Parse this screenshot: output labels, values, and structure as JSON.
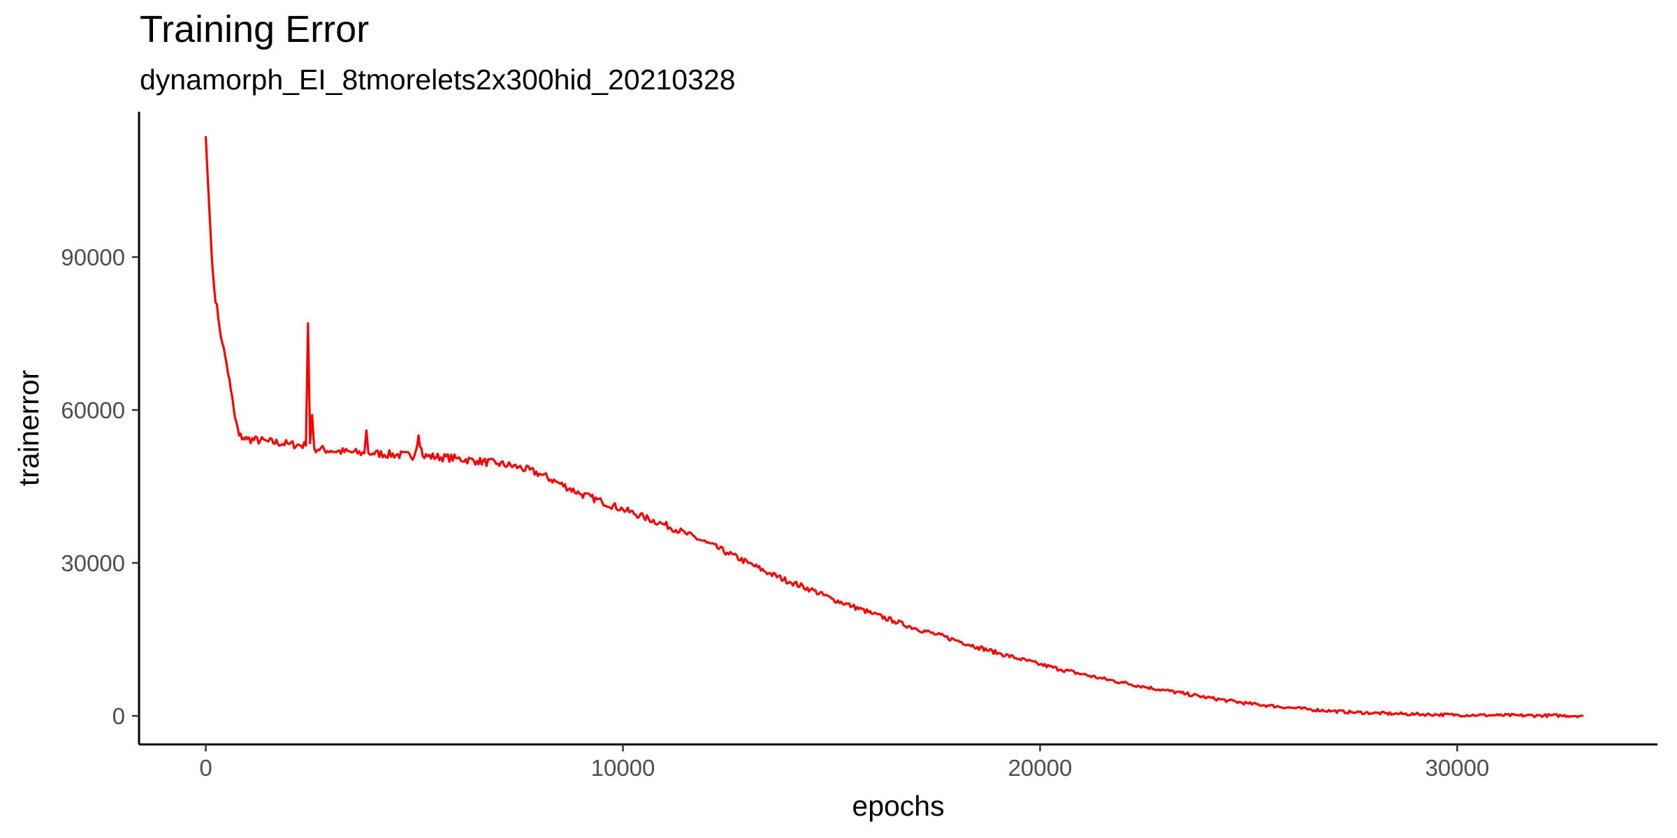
{
  "chart_data": {
    "type": "line",
    "title": "Training Error",
    "subtitle": "dynamorph_EI_8tmorelets2x300hid_20210328",
    "xlabel": "epochs",
    "ylabel": "trainerror",
    "xlim": [
      -1600,
      34800
    ],
    "ylim": [
      -5600,
      118500
    ],
    "x_ticks": [
      0,
      10000,
      20000,
      30000
    ],
    "y_ticks": [
      0,
      30000,
      60000,
      90000
    ],
    "x_tick_labels": [
      "0",
      "10000",
      "20000",
      "30000"
    ],
    "y_tick_labels": [
      "0",
      "30000",
      "60000",
      "90000"
    ],
    "grid": false,
    "legend": "none",
    "series": [
      {
        "color": "#ff0000",
        "x": [
          0,
          50,
          100,
          150,
          200,
          300,
          400,
          500,
          600,
          700,
          800,
          900,
          1000,
          1500,
          2000,
          2400,
          2450,
          2500,
          2550,
          2600,
          3000,
          3800,
          3850,
          3900,
          4000,
          5000,
          5100,
          5200,
          6000,
          6500,
          7000,
          7500,
          8000,
          8500,
          9000,
          9500,
          10000,
          10500,
          11000,
          11500,
          12000,
          12500,
          13000,
          13500,
          14000,
          14500,
          15000,
          15500,
          16000,
          16500,
          17000,
          17500,
          18000,
          18500,
          19000,
          19500,
          20000,
          20500,
          21000,
          21500,
          22000,
          22500,
          23000,
          23500,
          24000,
          24500,
          25000,
          25500,
          26000,
          26500,
          27000,
          27500,
          28000,
          28500,
          29000,
          29500,
          30000,
          30500,
          31000,
          31500,
          32000,
          32500,
          33000
        ],
        "y": [
          113500,
          105000,
          97000,
          89000,
          84000,
          78000,
          73000,
          69000,
          64000,
          58500,
          55000,
          54500,
          54300,
          53800,
          53300,
          53000,
          77000,
          53500,
          59000,
          52500,
          52000,
          51500,
          56000,
          51500,
          51500,
          51000,
          55000,
          51000,
          50500,
          50000,
          49500,
          48800,
          47500,
          45500,
          43500,
          42000,
          40500,
          39000,
          37500,
          35800,
          34000,
          32000,
          30000,
          28000,
          26300,
          24800,
          23000,
          21500,
          20000,
          18600,
          17200,
          16000,
          14800,
          13500,
          12300,
          11200,
          10100,
          9100,
          8200,
          7300,
          6500,
          5700,
          5000,
          4300,
          3600,
          3000,
          2400,
          2000,
          1600,
          1250,
          950,
          700,
          550,
          420,
          320,
          250,
          190,
          140,
          110,
          80,
          60,
          50,
          40
        ]
      }
    ]
  }
}
